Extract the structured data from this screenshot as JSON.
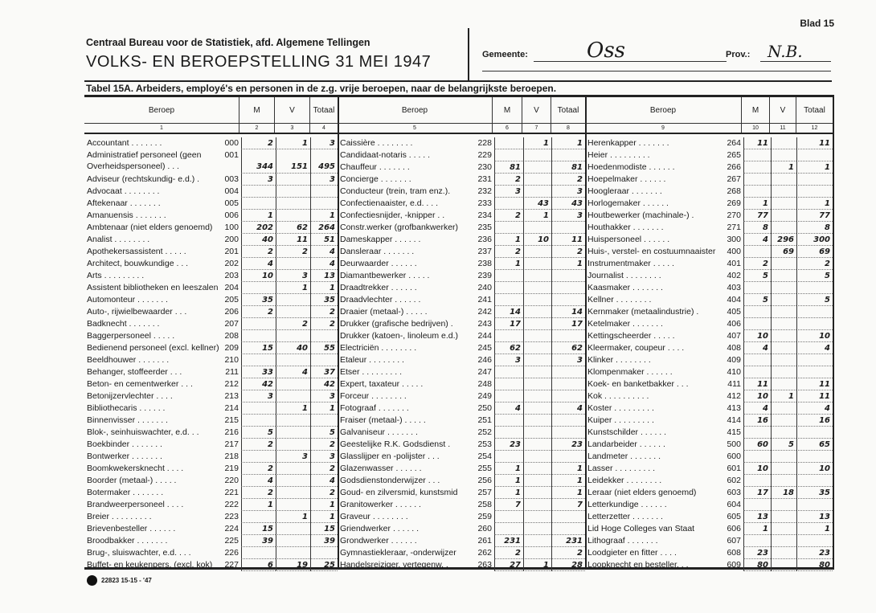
{
  "header": {
    "org": "Centraal Bureau voor de Statistiek, afd. Algemene Tellingen",
    "title": "VOLKS- EN BEROEPSTELLING 31 MEI 1947",
    "blad": "Blad 15",
    "gemeente_label": "Gemeente:",
    "gemeente": "Oss",
    "prov_label": "Prov.:",
    "prov": "N.B."
  },
  "table_title": "Tabel 15A.  Arbeiders, employé's en personen in de z.g. vrije beroepen, naar de belangrijkste beroepen.",
  "footer": "22823 15-15 - '47",
  "tables": [
    {
      "headers": [
        "Beroep",
        "M",
        "V",
        "Totaal"
      ],
      "colnums": [
        "1",
        "2",
        "3",
        "4"
      ],
      "rows": [
        [
          "Accountant . . . . . . .",
          "000",
          "2",
          "1",
          "3"
        ],
        [
          "Administratief personeel (geen Overheidspersoneel) . . .",
          "001",
          "344",
          "151",
          "495"
        ],
        [
          "Adviseur (rechtskundig- e.d.) .",
          "003",
          "3",
          "",
          "3"
        ],
        [
          "Advocaat . . . . . . . .",
          "004",
          "",
          "",
          ""
        ],
        [
          "Aftekenaar . . . . . . .",
          "005",
          "",
          "",
          ""
        ],
        [
          "Amanuensis . . . . . . .",
          "006",
          "1",
          "",
          "1"
        ],
        [
          "Ambtenaar (niet elders genoemd)",
          "100",
          "202",
          "62",
          "264"
        ],
        [
          "Analist . . . . . . . .",
          "200",
          "40",
          "11",
          "51"
        ],
        [
          "Apothekersassistent . . . . .",
          "201",
          "2",
          "2",
          "4"
        ],
        [
          "Architect, bouwkundige . . .",
          "202",
          "4",
          "",
          "4"
        ],
        [
          "Arts . . . . . . . . .",
          "203",
          "10",
          "3",
          "13"
        ],
        [
          "Assistent bibliotheken en leeszalen",
          "204",
          "",
          "1",
          "1"
        ],
        [
          "Automonteur . . . . . . .",
          "205",
          "35",
          "",
          "35"
        ],
        [
          "Auto-, rijwielbewaarder . . .",
          "206",
          "2",
          "",
          "2"
        ],
        [
          "Badknecht . . . . . . .",
          "207",
          "",
          "2",
          "2"
        ],
        [
          "Baggerpersoneel . . . . .",
          "208",
          "",
          "",
          ""
        ],
        [
          "Bedienend personeel (excl. kellner)",
          "209",
          "15",
          "40",
          "55"
        ],
        [
          "Beeldhouwer . . . . . . .",
          "210",
          "",
          "",
          ""
        ],
        [
          "Behanger, stoffeerder . . .",
          "211",
          "33",
          "4",
          "37"
        ],
        [
          "Beton- en cementwerker . . .",
          "212",
          "42",
          "",
          "42"
        ],
        [
          "Betonijzervlechter . . . .",
          "213",
          "3",
          "",
          "3"
        ],
        [
          "Bibliothecaris . . . . . .",
          "214",
          "",
          "1",
          "1"
        ],
        [
          "Binnenvisser . . . . . . .",
          "215",
          "",
          "",
          ""
        ],
        [
          "Blok-, seinhuiswachter, e.d. . .",
          "216",
          "5",
          "",
          "5"
        ],
        [
          "Boekbinder . . . . . . .",
          "217",
          "2",
          "",
          "2"
        ],
        [
          "Bontwerker . . . . . . .",
          "218",
          "",
          "3",
          "3"
        ],
        [
          "Boomkwekersknecht . . . .",
          "219",
          "2",
          "",
          "2"
        ],
        [
          "Boorder (metaal-) . . . . .",
          "220",
          "4",
          "",
          "4"
        ],
        [
          "Botermaker . . . . . . .",
          "221",
          "2",
          "",
          "2"
        ],
        [
          "Brandweerpersoneel . . . .",
          "222",
          "1",
          "",
          "1"
        ],
        [
          "Breier . . . . . . . . .",
          "223",
          "",
          "1",
          "1"
        ],
        [
          "Brievenbesteller . . . . . .",
          "224",
          "15",
          "",
          "15"
        ],
        [
          "Broodbakker . . . . . . .",
          "225",
          "39",
          "",
          "39"
        ],
        [
          "Brug-, sluiswachter, e.d. . . .",
          "226",
          "",
          "",
          ""
        ],
        [
          "Buffet- en keukenpers. (excl. kok)",
          "227",
          "6",
          "19",
          "25"
        ]
      ]
    },
    {
      "headers": [
        "Beroep",
        "M",
        "V",
        "Totaal"
      ],
      "colnums": [
        "5",
        "6",
        "7",
        "8"
      ],
      "rows": [
        [
          "Caissière . . . . . . . .",
          "228",
          "",
          "1",
          "1"
        ],
        [
          "Candidaat-notaris . . . . .",
          "229",
          "",
          "",
          ""
        ],
        [
          "Chauffeur . . . . . . .",
          "230",
          "81",
          "",
          "81"
        ],
        [
          "Concierge . . . . . . .",
          "231",
          "2",
          "",
          "2"
        ],
        [
          "Conducteur (trein, tram enz.).",
          "232",
          "3",
          "",
          "3"
        ],
        [
          "Confectienaaister, e.d. . . .",
          "233",
          "",
          "43",
          "43"
        ],
        [
          "Confectiesnijder, -knipper . .",
          "234",
          "2",
          "1",
          "3"
        ],
        [
          "Constr.werker (grofbankwerker)",
          "235",
          "",
          "",
          ""
        ],
        [
          "Dameskapper . . . . . .",
          "236",
          "1",
          "10",
          "11"
        ],
        [
          "Dansleraar . . . . . . .",
          "237",
          "2",
          "",
          "2"
        ],
        [
          "Deurwaarder . . . . . .",
          "238",
          "1",
          "",
          "1"
        ],
        [
          "Diamantbewerker . . . . .",
          "239",
          "",
          "",
          ""
        ],
        [
          "Draadtrekker . . . . . .",
          "240",
          "",
          "",
          ""
        ],
        [
          "Draadvlechter . . . . . .",
          "241",
          "",
          "",
          ""
        ],
        [
          "Draaier (metaal-) . . . . .",
          "242",
          "14",
          "",
          "14"
        ],
        [
          "Drukker (grafische bedrijven) .",
          "243",
          "17",
          "",
          "17"
        ],
        [
          "Drukker (katoen-, linoleum e.d.)",
          "244",
          "",
          "",
          ""
        ],
        [
          "Electriciën . . . . . . . .",
          "245",
          "62",
          "",
          "62"
        ],
        [
          "Etaleur . . . . . . . .",
          "246",
          "3",
          "",
          "3"
        ],
        [
          "Etser . . . . . . . . .",
          "247",
          "",
          "",
          ""
        ],
        [
          "Expert, taxateur . . . . .",
          "248",
          "",
          "",
          ""
        ],
        [
          "Forceur . . . . . . . .",
          "249",
          "",
          "",
          ""
        ],
        [
          "Fotograaf . . . . . . .",
          "250",
          "4",
          "",
          "4"
        ],
        [
          "Fraiser (metaal-) . . . . .",
          "251",
          "",
          "",
          ""
        ],
        [
          "Galvaniseur . . . . . . .",
          "252",
          "",
          "",
          ""
        ],
        [
          "Geestelijke R.K. Godsdienst .",
          "253",
          "23",
          "",
          "23"
        ],
        [
          "Glasslijper en -polijster . . .",
          "254",
          "",
          "",
          ""
        ],
        [
          "Glazenwasser . . . . . .",
          "255",
          "1",
          "",
          "1"
        ],
        [
          "Godsdienstonderwijzer . . .",
          "256",
          "1",
          "",
          "1"
        ],
        [
          "Goud- en zilversmid, kunstsmid",
          "257",
          "1",
          "",
          "1"
        ],
        [
          "Granitowerker . . . . . .",
          "258",
          "7",
          "",
          "7"
        ],
        [
          "Graveur . . . . . . . .",
          "259",
          "",
          "",
          ""
        ],
        [
          "Griendwerker . . . . . .",
          "260",
          "",
          "",
          ""
        ],
        [
          "Grondwerker . . . . . .",
          "261",
          "231",
          "",
          "231"
        ],
        [
          "Gymnastiekleraar, -onderwijzer",
          "262",
          "2",
          "",
          "2"
        ],
        [
          "Handelsreiziger, vertegenw. .",
          "263",
          "27",
          "1",
          "28"
        ]
      ]
    },
    {
      "headers": [
        "Beroep",
        "M",
        "V",
        "Totaal"
      ],
      "colnums": [
        "9",
        "10",
        "11",
        "12"
      ],
      "rows": [
        [
          "Herenkapper . . . . . . .",
          "264",
          "11",
          "",
          "11"
        ],
        [
          "Heier . . . . . . . . .",
          "265",
          "",
          "",
          ""
        ],
        [
          "Hoedenmodiste . . . . . .",
          "266",
          "",
          "1",
          "1"
        ],
        [
          "Hoepelmaker . . . . . .",
          "267",
          "",
          "",
          ""
        ],
        [
          "Hoogleraar . . . . . . .",
          "268",
          "",
          "",
          ""
        ],
        [
          "Horlogemaker . . . . . .",
          "269",
          "1",
          "",
          "1"
        ],
        [
          "Houtbewerker (machinale-) .",
          "270",
          "77",
          "",
          "77"
        ],
        [
          "Houthakker . . . . . . .",
          "271",
          "8",
          "",
          "8"
        ],
        [
          "Huispersoneel . . . . . .",
          "300",
          "4",
          "296",
          "300"
        ],
        [
          "Huis-, verstel- en costuumnaaister",
          "400",
          "",
          "69",
          "69"
        ],
        [
          "Instrumentmaker . . . . .",
          "401",
          "2",
          "",
          "2"
        ],
        [
          "Journalist . . . . . . . .",
          "402",
          "5",
          "",
          "5"
        ],
        [
          "Kaasmaker . . . . . . .",
          "403",
          "",
          "",
          ""
        ],
        [
          "Kellner . . . . . . . .",
          "404",
          "5",
          "",
          "5"
        ],
        [
          "Kernmaker (metaalindustrie) .",
          "405",
          "",
          "",
          ""
        ],
        [
          "Ketelmaker . . . . . . .",
          "406",
          "",
          "",
          ""
        ],
        [
          "Kettingscheerder . . . . .",
          "407",
          "10",
          "",
          "10"
        ],
        [
          "Kleermaker, coupeur . . . .",
          "408",
          "4",
          "",
          "4"
        ],
        [
          "Klinker . . . . . . . .",
          "409",
          "",
          "",
          ""
        ],
        [
          "Klompenmaker . . . . . .",
          "410",
          "",
          "",
          ""
        ],
        [
          "Koek- en banketbakker . . .",
          "411",
          "11",
          "",
          "11"
        ],
        [
          "Kok . . . . . . . . . .",
          "412",
          "10",
          "1",
          "11"
        ],
        [
          "Koster . . . . . . . . .",
          "413",
          "4",
          "",
          "4"
        ],
        [
          "Kuiper . . . . . . . . .",
          "414",
          "16",
          "",
          "16"
        ],
        [
          "Kunstschilder . . . . . .",
          "415",
          "",
          "",
          ""
        ],
        [
          "Landarbeider . . . . . .",
          "500",
          "60",
          "5",
          "65"
        ],
        [
          "Landmeter . . . . . . .",
          "600",
          "",
          "",
          ""
        ],
        [
          "Lasser . . . . . . . . .",
          "601",
          "10",
          "",
          "10"
        ],
        [
          "Leidekker . . . . . . . .",
          "602",
          "",
          "",
          ""
        ],
        [
          "Leraar (niet elders genoemd)",
          "603",
          "17",
          "18",
          "35"
        ],
        [
          "Letterkundige . . . . . .",
          "604",
          "",
          "",
          ""
        ],
        [
          "Letterzetter . . . . . . .",
          "605",
          "13",
          "",
          "13"
        ],
        [
          "Lid Hoge Colleges van Staat",
          "606",
          "1",
          "",
          "1"
        ],
        [
          "Lithograaf . . . . . . .",
          "607",
          "",
          "",
          ""
        ],
        [
          "Loodgieter en fitter . . . .",
          "608",
          "23",
          "",
          "23"
        ],
        [
          "Loopknecht en besteller. . .",
          "609",
          "80",
          "",
          "80"
        ]
      ]
    }
  ]
}
